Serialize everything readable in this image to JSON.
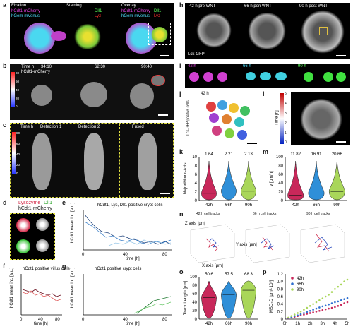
{
  "panel_letters": [
    "a",
    "b",
    "c",
    "d",
    "e",
    "f",
    "g",
    "h",
    "i",
    "j",
    "k",
    "l",
    "m",
    "n",
    "o",
    "p"
  ],
  "a": {
    "titles": [
      "Fixation",
      "Staining",
      "Overlay"
    ],
    "fix_labels": [
      "hCdt1-mCherry",
      "hGem-mVenus"
    ],
    "stain_labels": [
      "Dll1",
      "Lyz"
    ],
    "overlay_labels": [
      "hCdt1-mCherry",
      "hGem-mVenus",
      "Dll1",
      "Lyz"
    ]
  },
  "b": {
    "label": "Time h",
    "times": [
      "34:10",
      "62:30",
      "90:40"
    ],
    "marker": "hCdt1-mCherry",
    "colorbar_ticks": [
      "80",
      "60",
      "40",
      "20",
      "0"
    ]
  },
  "c": {
    "time_label": "Time h",
    "titles": [
      "Detection 1",
      "Detection 2",
      "Fused"
    ],
    "colorbar_ticks": [
      "80",
      "60",
      "40",
      "20",
      "0"
    ]
  },
  "d": {
    "title_parts": [
      "Lysozyme",
      "Dll1"
    ],
    "subtitle": "hCdt1-mCherry"
  },
  "e": {
    "title": "hCdt1, Lys, Dll1 positive crypt cells",
    "ylabel": "hCdt1 mean int. [a.u.]",
    "xlabel": "time [h]",
    "xticks": [
      "0",
      "40",
      "80"
    ]
  },
  "f": {
    "title": "hCdt1 positive villus cells",
    "ylabel": "hCdt1 mean int. [a.u.]",
    "xlabel": "time [h]",
    "xticks": [
      "0",
      "40",
      "80"
    ]
  },
  "g": {
    "title": "hCdt1 positive crypt cells",
    "ylabel": "hCdt1 mean int. [a.u.]",
    "xlabel": "time [h]",
    "xticks": [
      "0",
      "40",
      "80"
    ]
  },
  "h": {
    "titles": [
      "42 h pre WNT",
      "66 h peri WNT",
      "90 h post WNT"
    ],
    "marker": "Lck-GFP"
  },
  "i": {
    "times": [
      "42 h",
      "66 h",
      "90 h"
    ]
  },
  "j": {
    "time": "42 h",
    "ylabel": "Lck-GFP positive cells"
  },
  "l": {
    "label": "Time [h]",
    "colorbar_ticks": [
      "5",
      "4",
      "3",
      "2",
      "1",
      "0"
    ]
  },
  "n": {
    "titles": [
      "42 h cell tracks",
      "66 h cell tracks",
      "90 h cell tracks"
    ],
    "axes": [
      "X axis [μm]",
      "Y axis [μm]",
      "Z axis [μm]"
    ]
  },
  "chart_data": [
    {
      "panel": "k",
      "type": "violin",
      "categories": [
        "42h",
        "66h",
        "90h"
      ],
      "medians_label": [
        "1.64",
        "2.21",
        "2.13"
      ],
      "ylabel": "Major/Minor-Axis",
      "ylim": [
        0,
        10
      ],
      "yticks": [
        0,
        2,
        4,
        6,
        8,
        10
      ],
      "colors": [
        "#c8285a",
        "#2f8fd8",
        "#a9d65a"
      ]
    },
    {
      "panel": "m",
      "type": "violin",
      "categories": [
        "42h",
        "66h",
        "90h"
      ],
      "medians_label": [
        "11.82",
        "16.91",
        "20.66"
      ],
      "ylabel": "v [μm/h]",
      "ylim": [
        0,
        100
      ],
      "yticks": [
        0,
        20,
        40,
        60,
        80,
        100
      ],
      "colors": [
        "#c8285a",
        "#2f8fd8",
        "#a9d65a"
      ]
    },
    {
      "panel": "o",
      "type": "violin",
      "categories": [
        "42h",
        "66h",
        "90h"
      ],
      "medians_label": [
        "50.6",
        "57.5",
        "68.3"
      ],
      "ylabel": "Track Length [μm]",
      "ylim": [
        0,
        100
      ],
      "yticks": [
        0,
        20,
        40,
        60,
        80,
        100
      ],
      "colors": [
        "#c8285a",
        "#2f8fd8",
        "#a9d65a"
      ]
    },
    {
      "panel": "p",
      "type": "scatter",
      "ylabel": "MSD₃D [μm²·10³]",
      "xlabel": "",
      "ylim": [
        0,
        1.2
      ],
      "yticks": [
        "0",
        "0.2",
        "0.4",
        "0.6",
        "0.8",
        "1.0",
        "1.2"
      ],
      "xticks": [
        "0h",
        "1h",
        "2h",
        "3h",
        "4h",
        "5h"
      ],
      "x": [
        0.25,
        0.5,
        0.75,
        1,
        1.25,
        1.5,
        1.75,
        2,
        2.25,
        2.5,
        2.75,
        3,
        3.25,
        3.5,
        3.75,
        4,
        4.25,
        4.5,
        4.75,
        5
      ],
      "series": [
        {
          "name": "42h",
          "color": "#c8285a",
          "values": [
            0.02,
            0.04,
            0.06,
            0.08,
            0.1,
            0.12,
            0.14,
            0.16,
            0.18,
            0.2,
            0.22,
            0.24,
            0.26,
            0.28,
            0.3,
            0.32,
            0.35,
            0.38,
            0.42,
            0.45
          ]
        },
        {
          "name": "66h",
          "color": "#2f6fd0",
          "values": [
            0.03,
            0.05,
            0.08,
            0.1,
            0.13,
            0.16,
            0.19,
            0.22,
            0.25,
            0.28,
            0.31,
            0.34,
            0.36,
            0.39,
            0.42,
            0.45,
            0.47,
            0.5,
            0.53,
            0.56
          ]
        },
        {
          "name": "90h",
          "color": "#a9d65a",
          "values": [
            0.04,
            0.08,
            0.12,
            0.16,
            0.2,
            0.25,
            0.3,
            0.35,
            0.4,
            0.45,
            0.5,
            0.55,
            0.6,
            0.65,
            0.72,
            0.8,
            0.86,
            0.92,
            1.0,
            1.05
          ]
        }
      ]
    }
  ]
}
